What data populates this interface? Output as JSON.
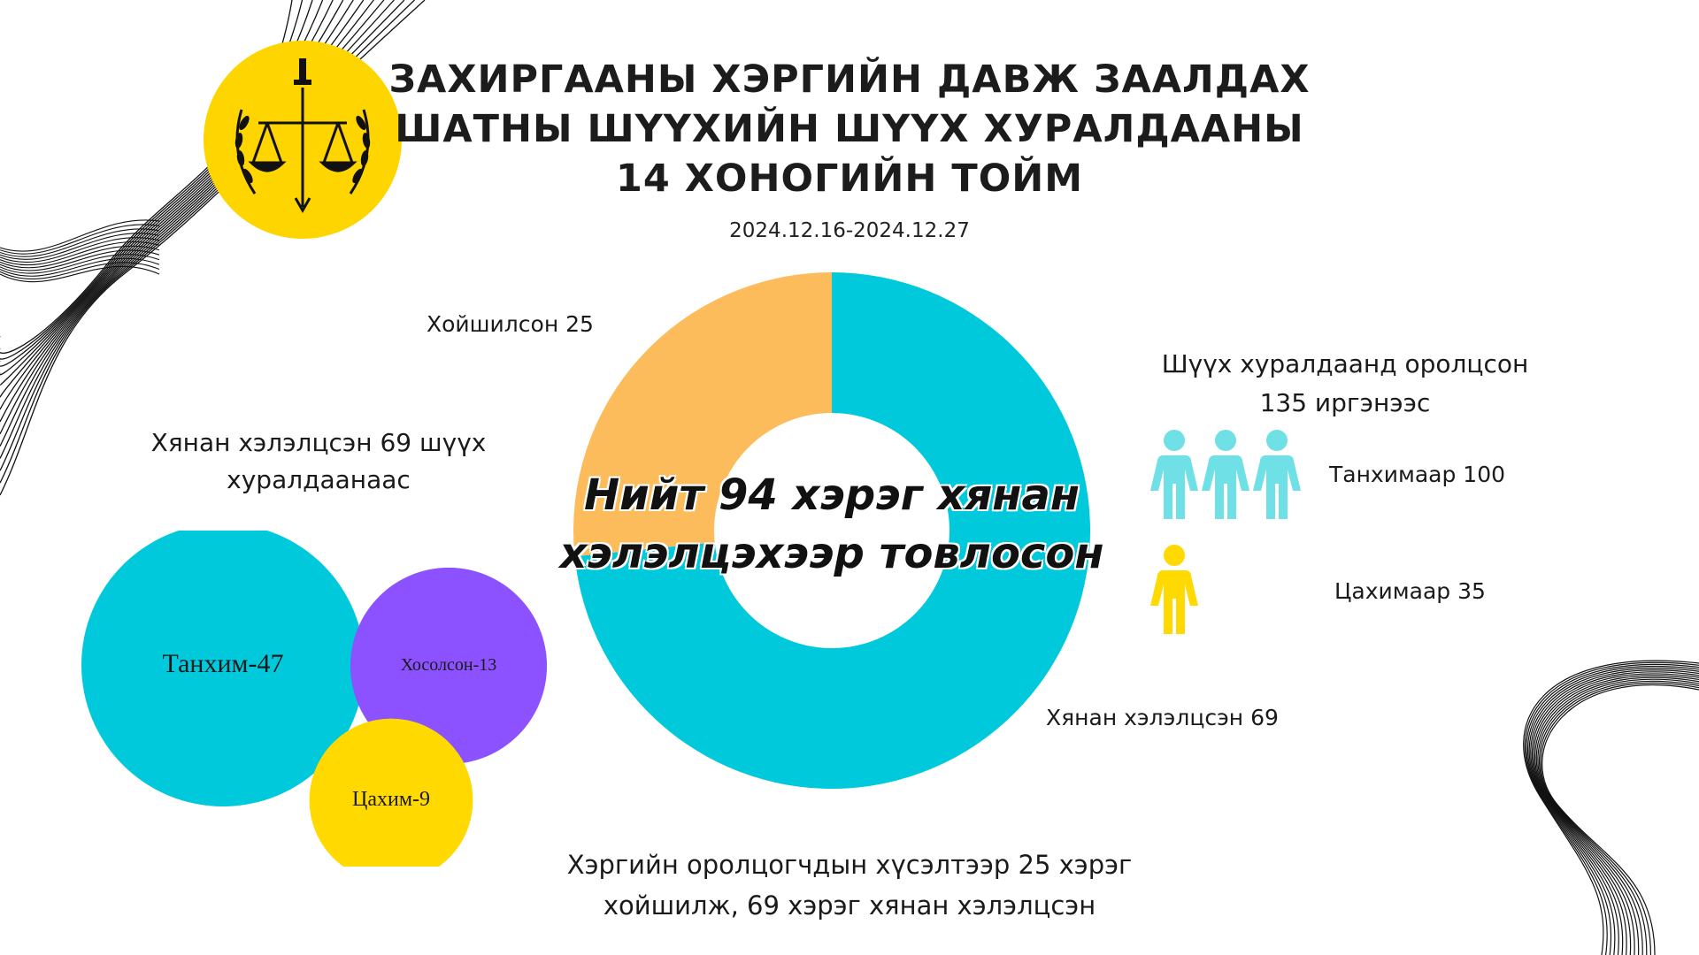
{
  "header": {
    "title_lines": [
      "ЗАХИРГААНЫ ХЭРГИЙН ДАВЖ ЗААЛДАХ",
      "ШАТНЫ ШҮҮХИЙН ШҮҮХ ХУРАЛДААНЫ",
      "14 ХОНОГИЙН ТОЙМ"
    ],
    "date_range": "2024.12.16-2024.12.27"
  },
  "colors": {
    "cyan": "#00C9DC",
    "orange": "#FDBC5C",
    "purple": "#8C52FF",
    "yellow": "#FFD900",
    "people_cyan": "#6EE0E6",
    "emblem_gold": "#FFD500"
  },
  "left": {
    "heading_lines": [
      "Хянан хэлэлцсэн 69 шүүх",
      "хуралдаанаас"
    ]
  },
  "right": {
    "heading_lines": [
      "Шүүх хуралдаанд оролцсон",
      "135 иргэнээс"
    ],
    "icons": [
      "person-icon"
    ]
  },
  "bottom_note_lines": [
    "Хэргийн оролцогчдын хүсэлтээр 25 хэрэг",
    "хойшилж, 69 хэрэг хянан хэлэлцсэн"
  ],
  "chart_data": [
    {
      "type": "pie",
      "variant": "donut",
      "center_label_lines": [
        "Нийт 94 хэрэг хянан",
        "хэлэлцэхээр товлосон"
      ],
      "slices": [
        {
          "label": "Хянан хэлэлцсэн 69",
          "value": 69,
          "color": "#00C9DC"
        },
        {
          "label": "Хойшилсон 25",
          "value": 25,
          "color": "#FDBC5C"
        }
      ]
    },
    {
      "type": "bubble",
      "points": [
        {
          "label": "Танхим-47",
          "value": 47,
          "color": "#00C9DC"
        },
        {
          "label": "Хосолсон-13",
          "value": 13,
          "color": "#8C52FF"
        },
        {
          "label": "Цахим-9",
          "value": 9,
          "color": "#FFD900"
        }
      ]
    },
    {
      "type": "pictogram",
      "rows": [
        {
          "label": "Танхимаар 100",
          "value": 100,
          "icons": 3,
          "color": "#6EE0E6"
        },
        {
          "label": "Цахимаар 35",
          "value": 35,
          "icons": 1,
          "color": "#FFD900"
        }
      ]
    }
  ]
}
